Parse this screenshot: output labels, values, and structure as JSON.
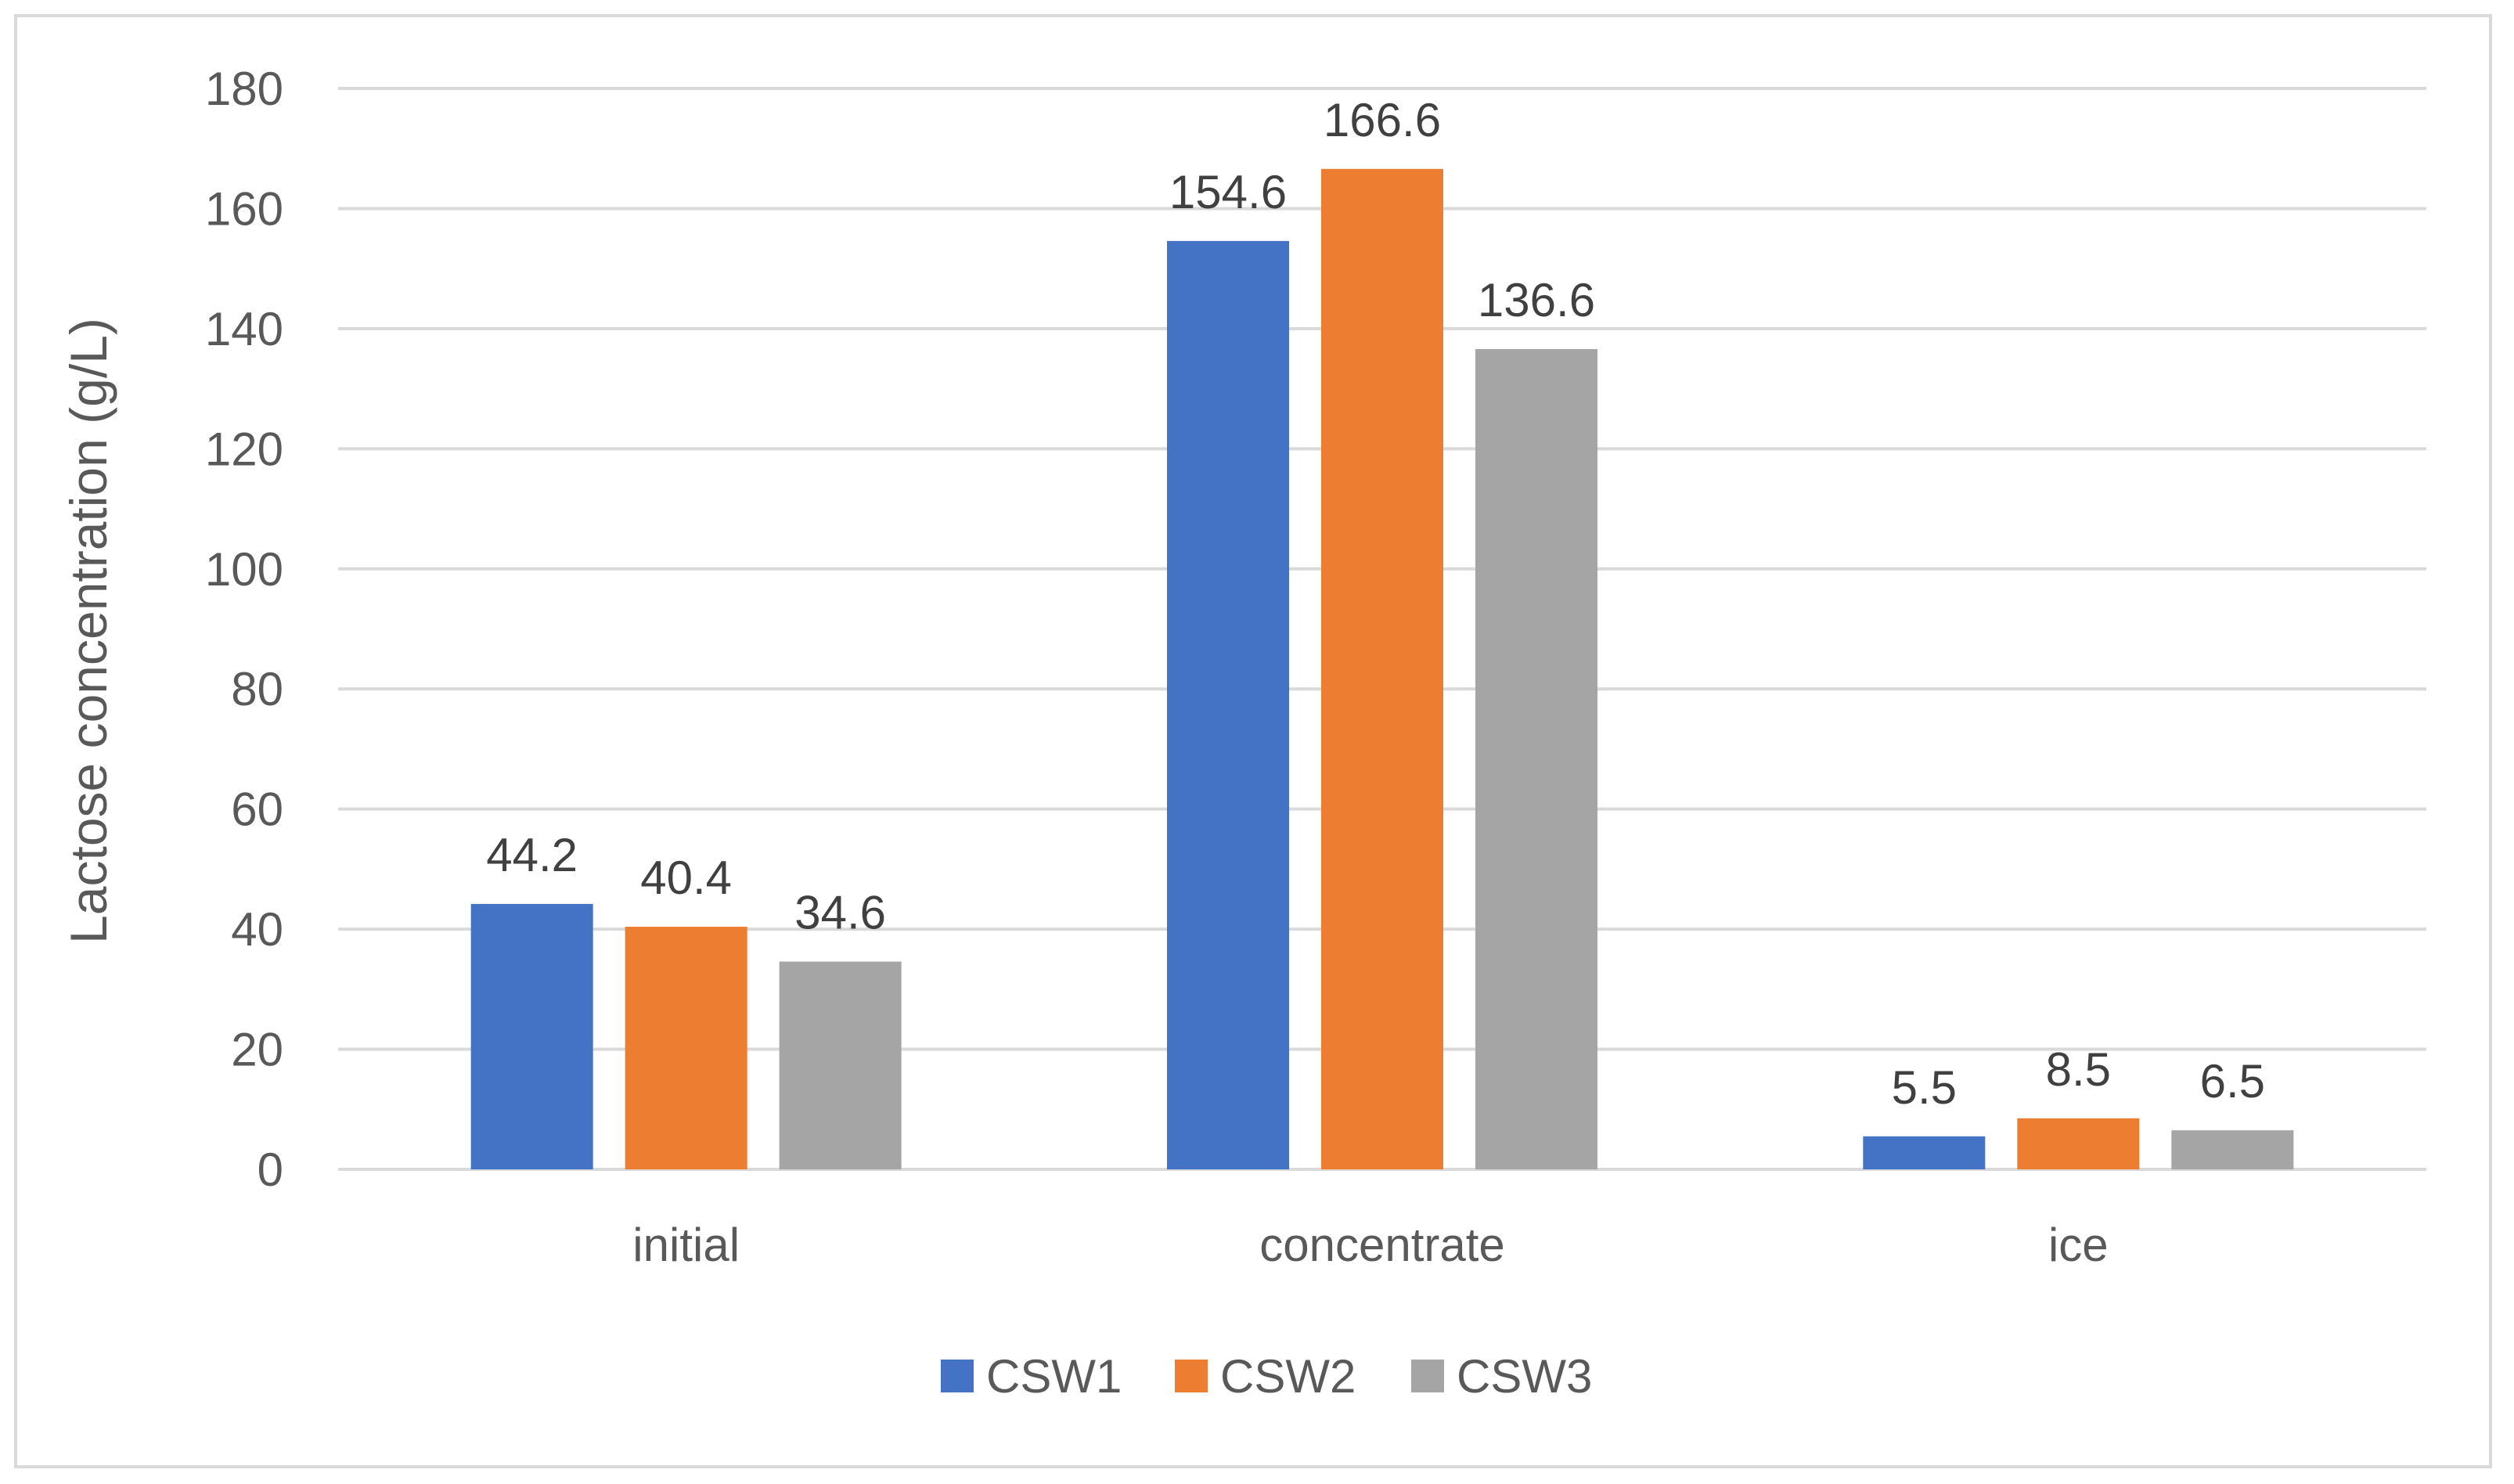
{
  "chart_data": {
    "type": "bar",
    "title": "",
    "xlabel": "",
    "ylabel": "Lactose concentration (g/L)",
    "ylim": [
      0,
      180
    ],
    "ytick_step": 20,
    "grid": true,
    "legend_position": "bottom",
    "categories": [
      "initial",
      "concentrate",
      "ice"
    ],
    "series": [
      {
        "name": "CSW1",
        "color": "#4472c4",
        "values": [
          44.2,
          154.6,
          5.5
        ],
        "labels": [
          "44.2",
          "154.6",
          "5.5"
        ]
      },
      {
        "name": "CSW2",
        "color": "#ed7d31",
        "values": [
          40.4,
          166.6,
          8.5
        ],
        "labels": [
          "40.4",
          "166.6",
          "8.5"
        ]
      },
      {
        "name": "CSW3",
        "color": "#a5a5a5",
        "values": [
          34.6,
          136.6,
          6.5
        ],
        "labels": [
          "34.6",
          "136.6",
          "6.5"
        ]
      }
    ]
  }
}
